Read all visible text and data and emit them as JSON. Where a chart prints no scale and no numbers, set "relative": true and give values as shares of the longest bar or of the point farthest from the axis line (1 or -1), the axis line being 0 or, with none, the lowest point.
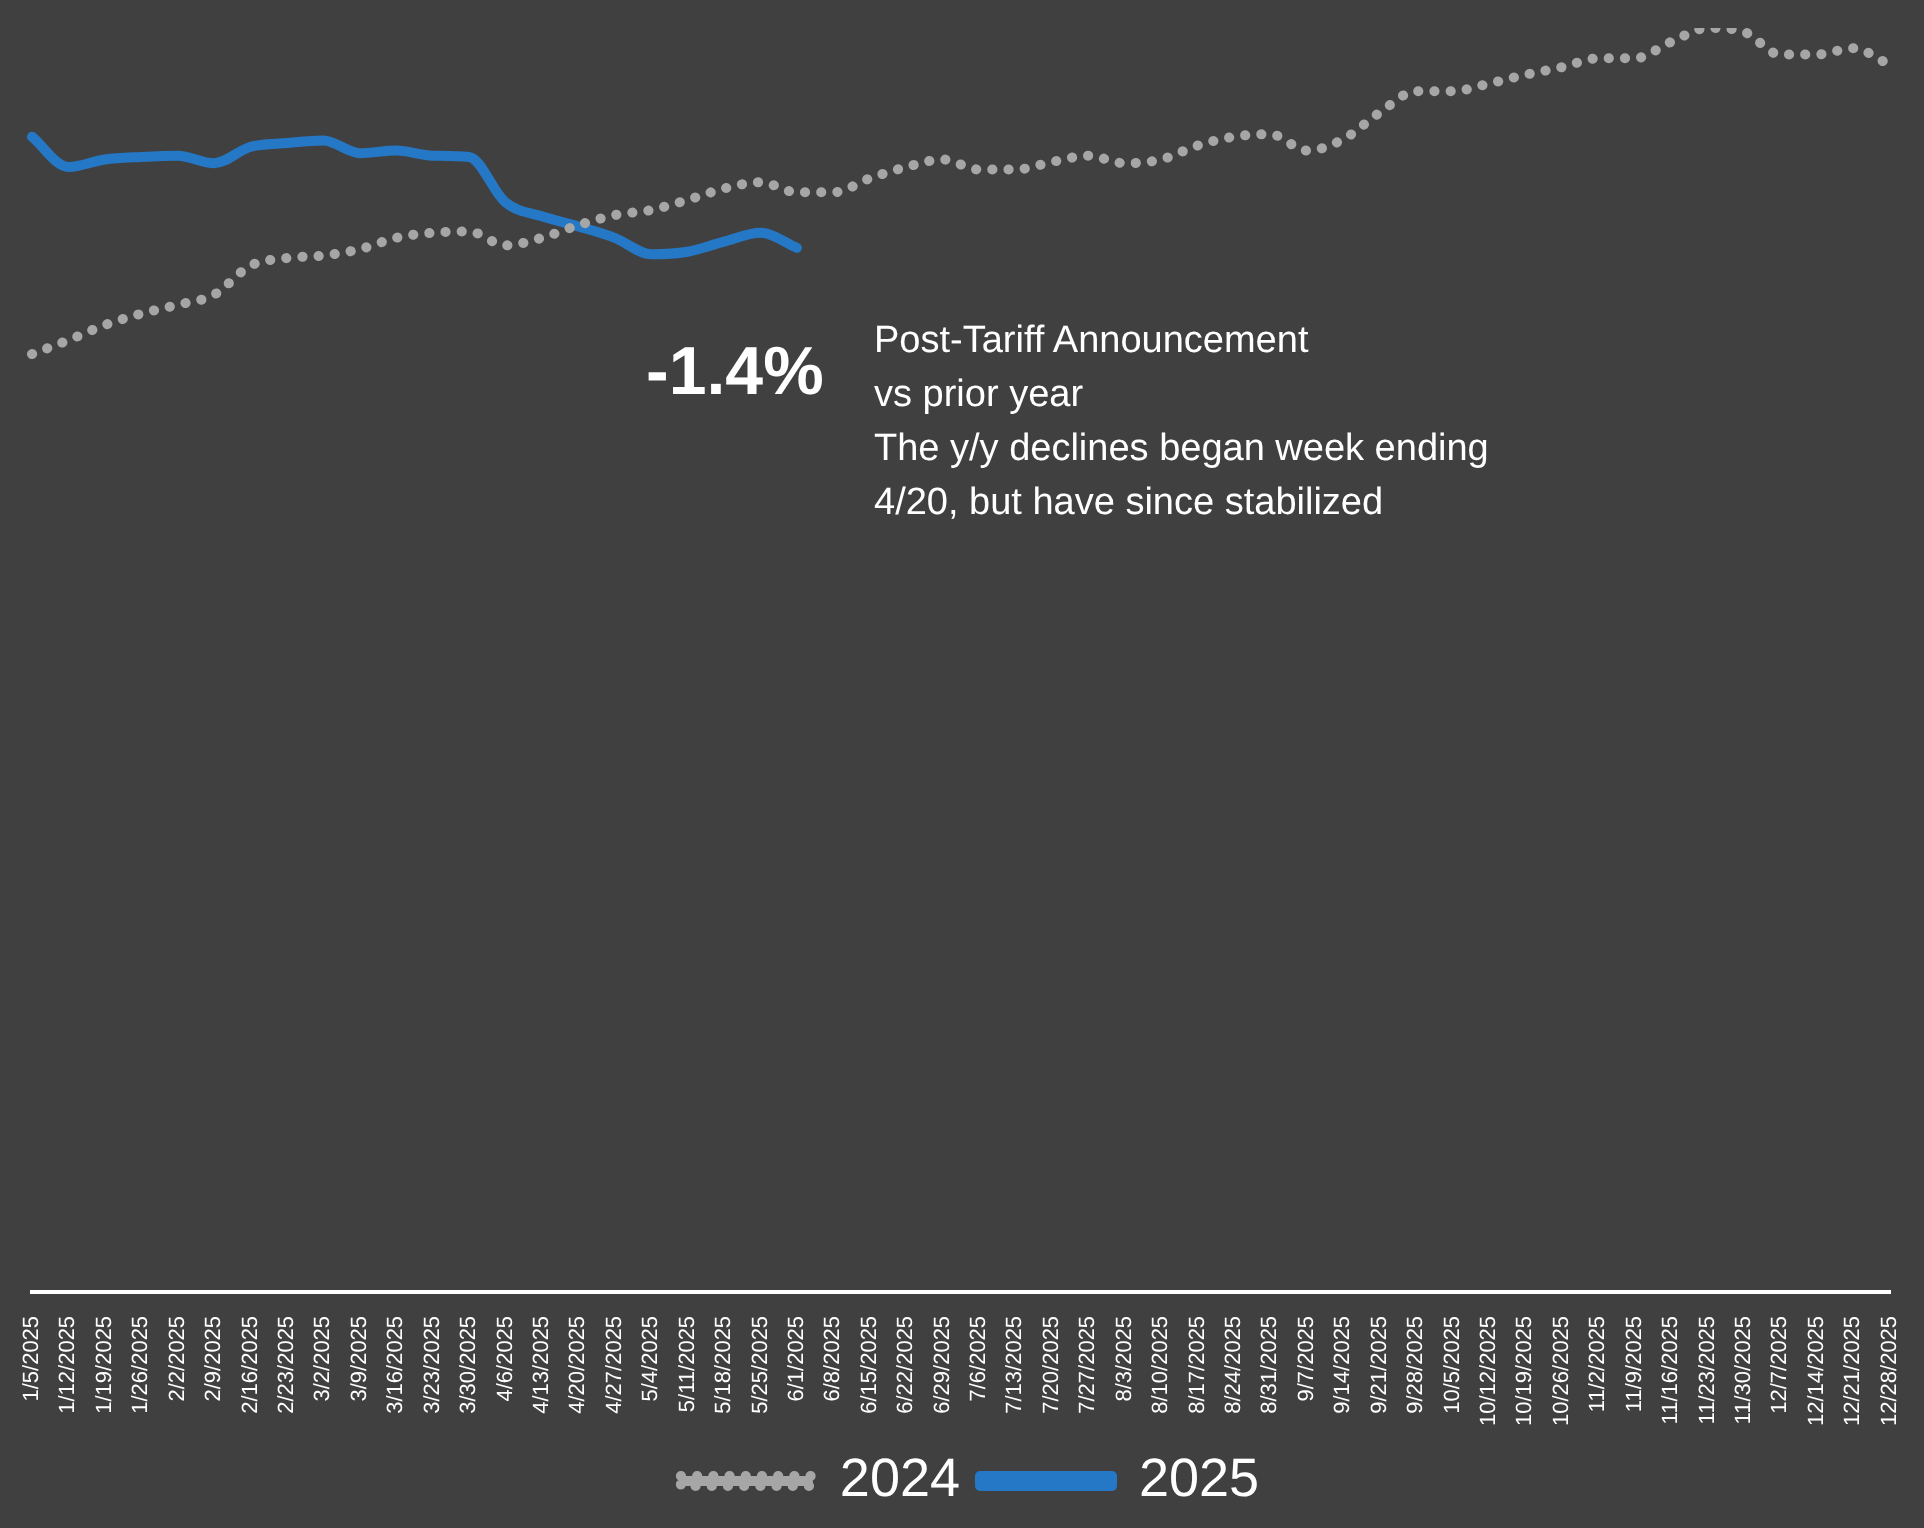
{
  "chart_data": {
    "type": "line",
    "relative": true,
    "categories": [
      "1/5/2025",
      "1/12/2025",
      "1/19/2025",
      "1/26/2025",
      "2/2/2025",
      "2/9/2025",
      "2/16/2025",
      "2/23/2025",
      "3/2/2025",
      "3/9/2025",
      "3/16/2025",
      "3/23/2025",
      "3/30/2025",
      "4/6/2025",
      "4/13/2025",
      "4/20/2025",
      "4/27/2025",
      "5/4/2025",
      "5/11/2025",
      "5/18/2025",
      "5/25/2025",
      "6/1/2025",
      "6/8/2025",
      "6/15/2025",
      "6/22/2025",
      "6/29/2025",
      "7/6/2025",
      "7/13/2025",
      "7/20/2025",
      "7/27/2025",
      "8/3/2025",
      "8/10/2025",
      "8/17/2025",
      "8/24/2025",
      "8/31/2025",
      "9/7/2025",
      "9/14/2025",
      "9/21/2025",
      "9/28/2025",
      "10/5/2025",
      "10/12/2025",
      "10/19/2025",
      "10/26/2025",
      "11/2/2025",
      "11/9/2025",
      "11/16/2025",
      "11/23/2025",
      "11/30/2025",
      "12/7/2025",
      "12/14/2025",
      "12/21/2025",
      "12/28/2025"
    ],
    "series": [
      {
        "name": "2024",
        "color": "#a6a6a6",
        "line_style": "dotted",
        "values": [
          0.742,
          0.753,
          0.765,
          0.774,
          0.781,
          0.789,
          0.812,
          0.818,
          0.82,
          0.825,
          0.834,
          0.838,
          0.839,
          0.828,
          0.834,
          0.844,
          0.852,
          0.856,
          0.864,
          0.873,
          0.878,
          0.87,
          0.87,
          0.881,
          0.89,
          0.896,
          0.888,
          0.888,
          0.894,
          0.899,
          0.893,
          0.896,
          0.907,
          0.914,
          0.916,
          0.903,
          0.912,
          0.933,
          0.95,
          0.95,
          0.956,
          0.963,
          0.969,
          0.976,
          0.976,
          0.989,
          1.0,
          0.997,
          0.979,
          0.979,
          0.984,
          0.971
        ]
      },
      {
        "name": "2025",
        "color": "#2478c6",
        "line_style": "solid",
        "values": [
          0.914,
          0.89,
          0.896,
          0.898,
          0.899,
          0.893,
          0.906,
          0.909,
          0.911,
          0.901,
          0.903,
          0.899,
          0.898,
          0.862,
          0.851,
          0.843,
          0.834,
          0.821,
          0.823,
          0.831,
          0.838,
          0.826,
          null,
          null,
          null,
          null,
          null,
          null,
          null,
          null,
          null,
          null,
          null,
          null,
          null,
          null,
          null,
          null,
          null,
          null,
          null,
          null,
          null,
          null,
          null,
          null,
          null,
          null,
          null,
          null,
          null,
          null
        ]
      }
    ],
    "annotations": [
      "-1.4%",
      "Post-Tariff Announcement vs prior year",
      "The y/y declines began week ending 4/20, but have since stabilized"
    ],
    "legend": "bottom",
    "grid": false,
    "marker": "none"
  }
}
